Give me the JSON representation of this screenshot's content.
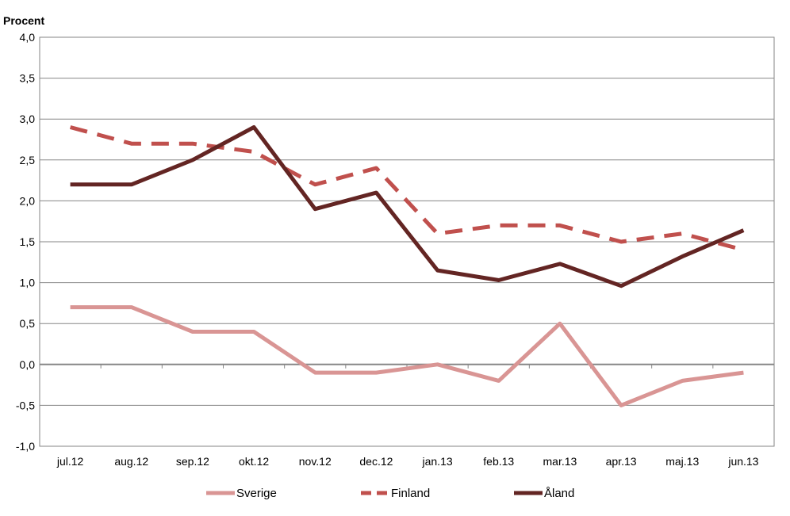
{
  "chart_data": {
    "type": "line",
    "ylabel": "Procent",
    "ylim": [
      -1.0,
      4.0
    ],
    "yticks": [
      "4,0",
      "3,5",
      "3,0",
      "2,5",
      "2,0",
      "1,5",
      "1,0",
      "0,5",
      "0,0",
      "-0,5",
      "-1,0"
    ],
    "ytick_values": [
      4.0,
      3.5,
      3.0,
      2.5,
      2.0,
      1.5,
      1.0,
      0.5,
      0.0,
      -0.5,
      -1.0
    ],
    "categories": [
      "jul.12",
      "aug.12",
      "sep.12",
      "okt.12",
      "nov.12",
      "dec.12",
      "jan.13",
      "feb.13",
      "mar.13",
      "apr.13",
      "maj.13",
      "jun.13"
    ],
    "grid": true,
    "legend_position": "bottom",
    "series": [
      {
        "name": "Sverige",
        "color": "#d99594",
        "style": "solid",
        "values": [
          0.7,
          0.7,
          0.4,
          0.4,
          -0.1,
          -0.1,
          0.0,
          -0.2,
          0.5,
          -0.5,
          -0.2,
          -0.1
        ]
      },
      {
        "name": "Finland",
        "color": "#c0504d",
        "style": "dashed",
        "values": [
          2.9,
          2.7,
          2.7,
          2.6,
          2.2,
          2.4,
          1.6,
          1.7,
          1.7,
          1.5,
          1.6,
          1.4
        ]
      },
      {
        "name": "Åland",
        "color": "#632523",
        "style": "solid",
        "values": [
          2.2,
          2.2,
          2.5,
          2.9,
          1.9,
          2.1,
          1.15,
          1.03,
          1.23,
          0.96,
          1.32,
          1.64
        ]
      }
    ]
  }
}
